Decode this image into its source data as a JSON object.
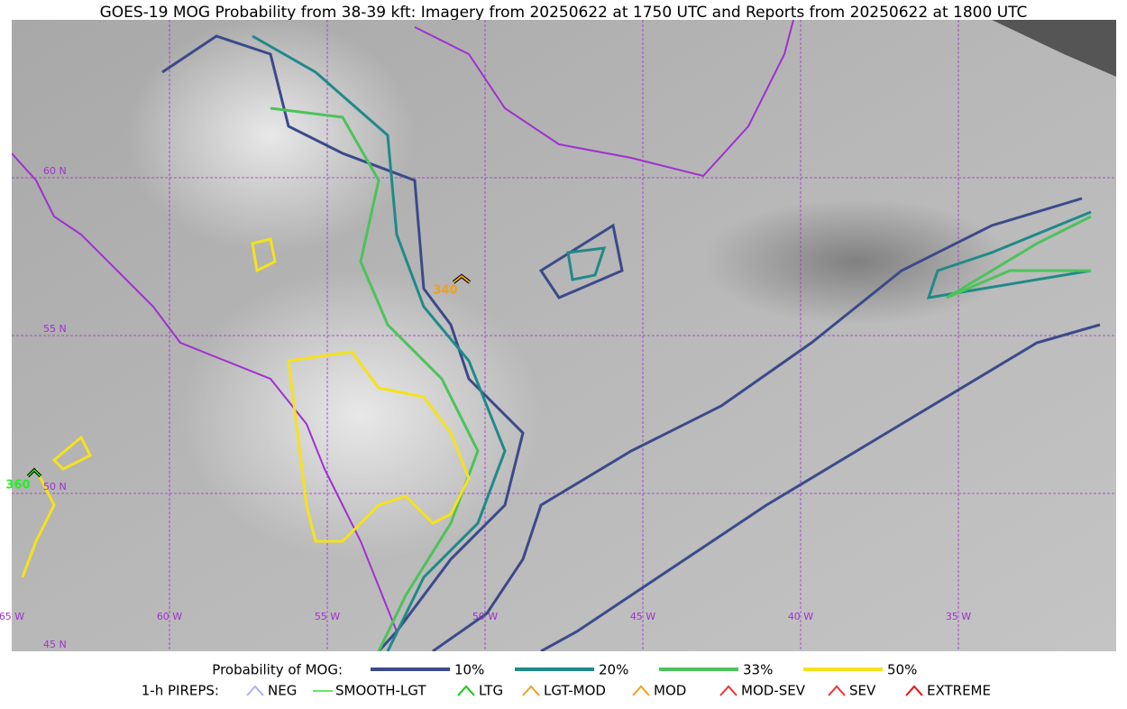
{
  "title": "GOES-19 MOG Probability from 38-39 kft: Imagery from 20250622 at 1750 UTC and Reports from 20250622 at 1800 UTC",
  "map": {
    "lat_labels": [
      "60 N",
      "55 N",
      "50 N",
      "45 N"
    ],
    "lon_labels": [
      "65 W",
      "60 W",
      "55 W",
      "50 W",
      "45 W",
      "40 W",
      "35 W"
    ]
  },
  "reports": [
    {
      "label": "340",
      "color": "#f0a020"
    },
    {
      "label": "360",
      "color": "#22ee22"
    }
  ],
  "legend": {
    "probability_title": "Probability of MOG:",
    "probability_levels": [
      {
        "label": "10%",
        "color": "#3b4a8a"
      },
      {
        "label": "20%",
        "color": "#1f8a88"
      },
      {
        "label": "33%",
        "color": "#4cc35a"
      },
      {
        "label": "50%",
        "color": "#f5e21b"
      }
    ],
    "pirep_title": "1-h PIREPS:",
    "pirep_types": [
      {
        "label": "NEG",
        "color": "#b0b0ff"
      },
      {
        "label": "SMOOTH-LGT",
        "color": "#33dd33"
      },
      {
        "label": "LTG",
        "color": "#11cc11"
      },
      {
        "label": "LGT-MOD",
        "color": "#f0a020"
      },
      {
        "label": "MOD",
        "color": "#f0a020"
      },
      {
        "label": "MOD-SEV",
        "color": "#ee3333"
      },
      {
        "label": "SEV",
        "color": "#ee3333"
      },
      {
        "label": "EXTREME",
        "color": "#ee1111"
      }
    ]
  }
}
